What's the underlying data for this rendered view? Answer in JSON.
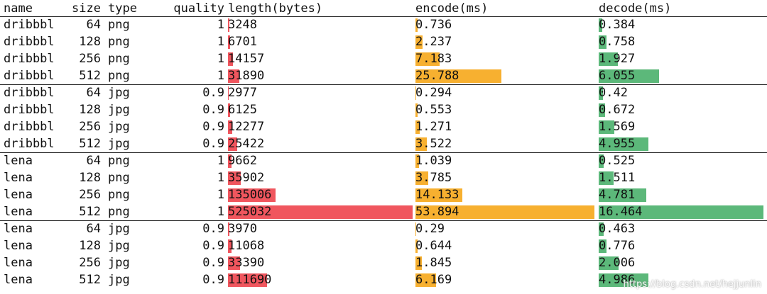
{
  "table": {
    "columns": [
      "name",
      "size",
      "type",
      "quality",
      "length(bytes)",
      "encode(ms)",
      "decode(ms)"
    ],
    "rows": [
      [
        "dribbbl",
        64,
        "png",
        1,
        3248,
        0.736,
        0.384
      ],
      [
        "dribbbl",
        128,
        "png",
        1,
        6701,
        2.237,
        0.758
      ],
      [
        "dribbbl",
        256,
        "png",
        1,
        14157,
        7.183,
        1.927
      ],
      [
        "dribbbl",
        512,
        "png",
        1,
        31890,
        25.788,
        6.055
      ],
      [
        "dribbbl",
        64,
        "jpg",
        0.9,
        2977,
        0.294,
        0.42
      ],
      [
        "dribbbl",
        128,
        "jpg",
        0.9,
        6125,
        0.553,
        0.672
      ],
      [
        "dribbbl",
        256,
        "jpg",
        0.9,
        12277,
        1.271,
        1.569
      ],
      [
        "dribbbl",
        512,
        "jpg",
        0.9,
        25422,
        3.522,
        4.955
      ],
      [
        "lena",
        64,
        "png",
        1,
        9662,
        1.039,
        0.525
      ],
      [
        "lena",
        128,
        "png",
        1,
        35902,
        3.785,
        1.511
      ],
      [
        "lena",
        256,
        "png",
        1,
        135006,
        14.133,
        4.781
      ],
      [
        "lena",
        512,
        "png",
        1,
        525032,
        53.894,
        16.464
      ],
      [
        "lena",
        64,
        "jpg",
        0.9,
        3970,
        0.29,
        0.463
      ],
      [
        "lena",
        128,
        "jpg",
        0.9,
        11068,
        0.644,
        0.776
      ],
      [
        "lena",
        256,
        "jpg",
        0.9,
        33390,
        1.845,
        2.006
      ],
      [
        "lena",
        512,
        "jpg",
        0.9,
        111690,
        6.169,
        4.986
      ]
    ]
  },
  "watermark": "https://blog.csdn.net/hejjunlin"
}
